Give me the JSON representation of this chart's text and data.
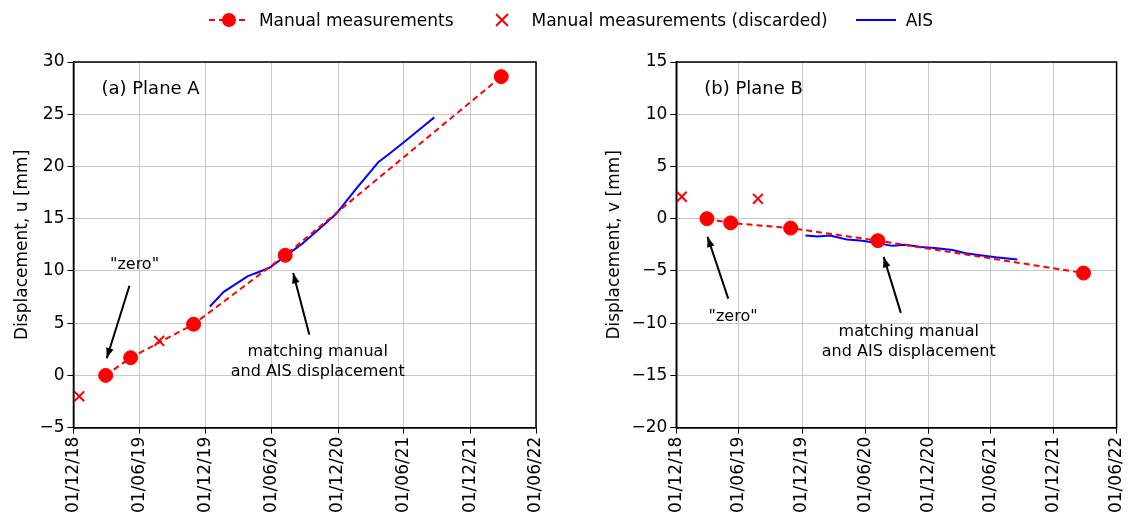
{
  "chart_data": [
    {
      "type": "line",
      "title": "(a) Plane A",
      "ylabel": "Displacement, u [mm]",
      "legend": "top",
      "grid": true,
      "xlim": [
        "2018-12-01",
        "2022-06-01"
      ],
      "xticks": [
        {
          "value": "2018-12-01",
          "label": "01/12/18"
        },
        {
          "value": "2019-06-01",
          "label": "01/06/19"
        },
        {
          "value": "2019-12-01",
          "label": "01/12/19"
        },
        {
          "value": "2020-06-01",
          "label": "01/06/20"
        },
        {
          "value": "2020-12-01",
          "label": "01/12/20"
        },
        {
          "value": "2021-06-01",
          "label": "01/06/21"
        },
        {
          "value": "2021-12-01",
          "label": "01/12/21"
        },
        {
          "value": "2022-06-01",
          "label": "01/06/22"
        }
      ],
      "ylim": [
        -5,
        30
      ],
      "yticks": [
        -5,
        0,
        5,
        10,
        15,
        20,
        25,
        30
      ],
      "series": [
        {
          "name": "Manual measurements",
          "color": "#ff0000",
          "marker": "circle",
          "line_style": "dashed",
          "x": [
            "2019-02-28",
            "2019-05-08",
            "2019-10-29",
            "2020-07-08",
            "2022-02-25"
          ],
          "values": [
            0,
            1.7,
            4.9,
            11.5,
            28.6
          ]
        },
        {
          "type": "scatter",
          "name": "Manual measurements (discarded)",
          "color": "#ff0000",
          "marker": "cross",
          "x": [
            "2018-12-17",
            "2019-07-26"
          ],
          "values": [
            -2.0,
            3.3
          ]
        },
        {
          "name": "AIS",
          "color": "#0000ff",
          "marker": "none",
          "line_style": "solid",
          "x": [
            "2019-12-13",
            "2020-01-20",
            "2020-03-27",
            "2020-05-26",
            "2020-08-24",
            "2020-10-13",
            "2020-11-27",
            "2021-01-21",
            "2021-03-22",
            "2021-04-21",
            "2021-05-31",
            "2021-07-20",
            "2021-08-24"
          ],
          "values": [
            6.6,
            8.0,
            9.5,
            10.3,
            12.6,
            14.1,
            15.5,
            17.9,
            20.4,
            21.2,
            22.3,
            23.7,
            24.7
          ]
        }
      ],
      "annotations": [
        "\"zero\"",
        "matching manual\nand AIS displacement"
      ]
    },
    {
      "type": "line",
      "title": "(b) Plane B",
      "ylabel": "Displacement, v [mm]",
      "legend": "top",
      "grid": true,
      "xlim": [
        "2018-12-01",
        "2022-06-01"
      ],
      "xticks": [
        {
          "value": "2018-12-01",
          "label": "01/12/18"
        },
        {
          "value": "2019-06-01",
          "label": "01/06/19"
        },
        {
          "value": "2019-12-01",
          "label": "01/12/19"
        },
        {
          "value": "2020-06-01",
          "label": "01/06/20"
        },
        {
          "value": "2020-12-01",
          "label": "01/12/20"
        },
        {
          "value": "2021-06-01",
          "label": "01/06/21"
        },
        {
          "value": "2021-12-01",
          "label": "01/12/21"
        },
        {
          "value": "2022-06-01",
          "label": "01/06/22"
        }
      ],
      "ylim": [
        -20,
        15
      ],
      "yticks": [
        -20,
        -15,
        -10,
        -5,
        0,
        5,
        10,
        15
      ],
      "series": [
        {
          "name": "Manual measurements",
          "color": "#ff0000",
          "marker": "circle",
          "line_style": "dashed",
          "x": [
            "2019-02-28",
            "2019-05-08",
            "2019-10-29",
            "2020-07-08",
            "2022-02-25"
          ],
          "values": [
            0,
            -0.4,
            -0.9,
            -2.1,
            -5.2
          ]
        },
        {
          "type": "scatter",
          "name": "Manual measurements (discarded)",
          "color": "#ff0000",
          "marker": "cross",
          "x": [
            "2018-12-17",
            "2019-07-26"
          ],
          "values": [
            2.1,
            1.9
          ]
        },
        {
          "name": "AIS",
          "color": "#0000ff",
          "marker": "none",
          "line_style": "solid",
          "x": [
            "2019-12-11",
            "2020-01-15",
            "2020-02-20",
            "2020-04-10",
            "2020-05-25",
            "2020-08-20",
            "2020-09-25",
            "2020-11-10",
            "2020-12-20",
            "2021-02-10",
            "2021-03-20",
            "2021-05-01",
            "2021-06-15",
            "2021-08-17"
          ],
          "values": [
            -1.6,
            -1.7,
            -1.6,
            -2.0,
            -2.1,
            -2.6,
            -2.5,
            -2.7,
            -2.8,
            -3.0,
            -3.3,
            -3.5,
            -3.7,
            -3.9
          ]
        }
      ],
      "annotations": [
        "\"zero\"",
        "matching manual\nand AIS displacement"
      ]
    }
  ]
}
